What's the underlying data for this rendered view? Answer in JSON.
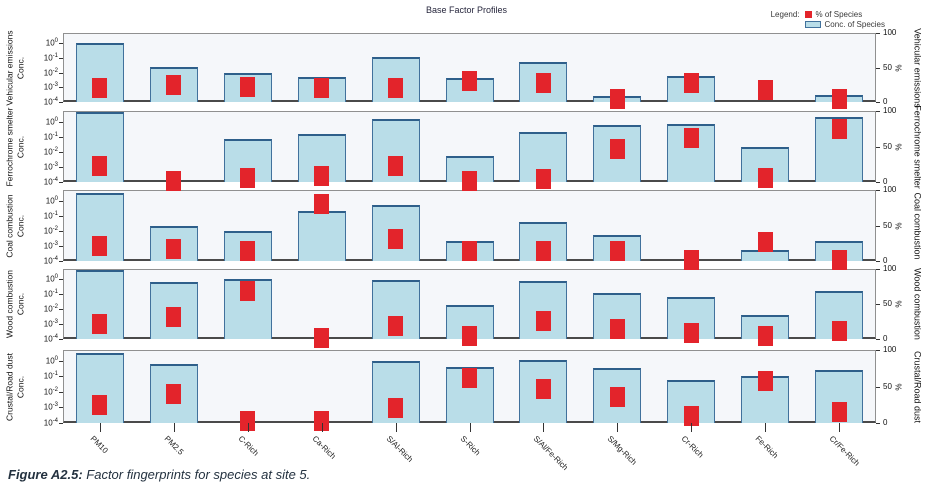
{
  "title": "Base Factor Profiles",
  "legend": {
    "label": "Legend:",
    "items": [
      {
        "label": "% of Species",
        "color": "#e3242b",
        "type": "square"
      },
      {
        "label": "Conc. of Species",
        "color": "#b9dde8",
        "border": "#41719c",
        "type": "bar"
      }
    ]
  },
  "caption": {
    "prefix": "Figure A2.5:",
    "text": " Factor fingerprints for species at site 5."
  },
  "colors": {
    "bar_fill": "#b9dde8",
    "bar_border": "#41719c",
    "marker": "#e3242b",
    "panel_bg": "#f5f7fa"
  },
  "chart_data": {
    "type": "bar",
    "grid": false,
    "legend_position": "top-right",
    "categories": [
      "PM10",
      "PM2.5",
      "C-Rich",
      "Ca-Rich",
      "S/Al-Rich",
      "S-Rich",
      "S/Al/Fe-Rich",
      "S/Mg-Rich",
      "Cr-Rich",
      "Fe-Rich",
      "Cr/Fe-Rich"
    ],
    "left_axis": {
      "label": "Conc.",
      "scale": "log",
      "ticks": [
        "10^0",
        "10^-1",
        "10^-2",
        "10^-3",
        "10^-4"
      ],
      "tick_exponents": [
        0,
        -1,
        -2,
        -3,
        -4
      ],
      "range_exponents": [
        -4,
        0.7
      ]
    },
    "right_axis": {
      "label": "%",
      "ticks": [
        100,
        50,
        0
      ],
      "range": [
        0,
        100
      ]
    },
    "panels": [
      {
        "name": "Vehicular emissions",
        "series": [
          {
            "name": "Conc. of Species",
            "axis": "left",
            "values": [
              1.1,
              0.024,
              0.01,
              0.005,
              0.11,
              0.004,
              0.05,
              0.00025,
              0.006,
              0,
              0.0003
            ]
          },
          {
            "name": "% of Species",
            "axis": "right",
            "values": [
              21,
              25,
              22,
              20,
              20,
              30,
              27,
              5,
              27,
              18,
              4
            ]
          }
        ]
      },
      {
        "name": "Ferrochrome smelter",
        "series": [
          {
            "name": "Conc. of Species",
            "axis": "left",
            "values": [
              4,
              0,
              0.07,
              0.15,
              1.4,
              0.005,
              0.2,
              0.6,
              0.7,
              0.02,
              2
            ]
          },
          {
            "name": "% of Species",
            "axis": "right",
            "values": [
              22,
              2,
              5,
              9,
              23,
              2,
              4,
              46,
              62,
              6,
              75
            ]
          }
        ]
      },
      {
        "name": "Coal combustion",
        "series": [
          {
            "name": "Conc. of Species",
            "axis": "left",
            "values": [
              3,
              0.02,
              0.01,
              0.2,
              0.5,
              0.002,
              0.04,
              0.005,
              0,
              0.0005,
              0.002
            ]
          },
          {
            "name": "% of Species",
            "axis": "right",
            "values": [
              21,
              17,
              14,
              80,
              31,
              14,
              14,
              14,
              2,
              27,
              2
            ]
          }
        ]
      },
      {
        "name": "Wood combustion",
        "series": [
          {
            "name": "Conc. of Species",
            "axis": "left",
            "values": [
              4,
              0.7,
              1.1,
              0,
              0.9,
              0.02,
              0.8,
              0.12,
              0.07,
              0.004,
              0.16
            ]
          },
          {
            "name": "% of Species",
            "axis": "right",
            "values": [
              21,
              32,
              69,
              2,
              19,
              5,
              26,
              14,
              9,
              4,
              12
            ]
          }
        ]
      },
      {
        "name": "Crustal/Road dust",
        "series": [
          {
            "name": "Conc. of Species",
            "axis": "left",
            "values": [
              3,
              0.6,
              0,
              0,
              1.0,
              0.4,
              1.2,
              0.35,
              0.06,
              0.1,
              0.25
            ]
          },
          {
            "name": "% of Species",
            "axis": "right",
            "values": [
              24,
              40,
              3,
              3,
              21,
              61,
              46,
              35,
              10,
              58,
              15
            ]
          }
        ]
      }
    ]
  }
}
